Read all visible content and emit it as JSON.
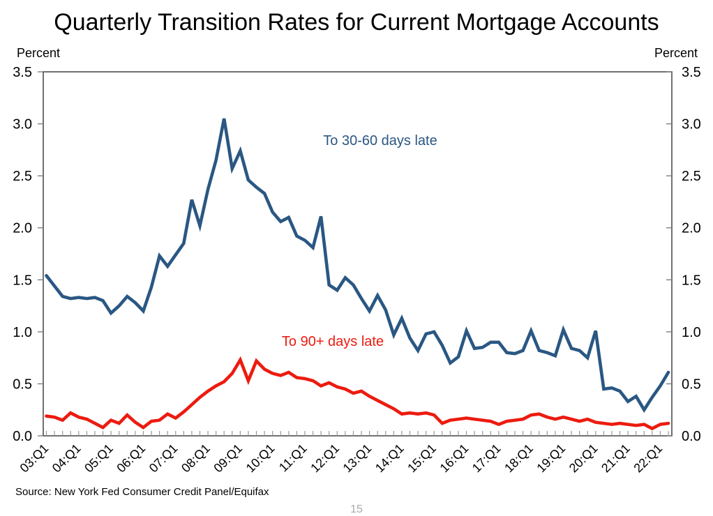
{
  "title": "Quarterly Transition Rates for Current Mortgage Accounts",
  "axis_units": {
    "left": "Percent",
    "right": "Percent"
  },
  "source": "Source: New York Fed Consumer Credit Panel/Equifax",
  "page_number": "15",
  "chart_data": {
    "type": "line",
    "title": "Quarterly Transition Rates for Current Mortgage Accounts",
    "ylabel": "Percent",
    "ylim": [
      0.0,
      3.5
    ],
    "yticks": [
      0.0,
      0.5,
      1.0,
      1.5,
      2.0,
      2.5,
      3.0,
      3.5
    ],
    "ytick_labels": [
      "0.0",
      "0.5",
      "1.0",
      "1.5",
      "2.0",
      "2.5",
      "3.0",
      "3.5"
    ],
    "x_frequency": "quarterly",
    "x_start": "03:Q1",
    "x_end": "22:Q2",
    "x_tick_labels": [
      "03:Q1",
      "04:Q1",
      "05:Q1",
      "06:Q1",
      "07:Q1",
      "08:Q1",
      "09:Q1",
      "10:Q1",
      "11:Q1",
      "12:Q1",
      "13:Q1",
      "14:Q1",
      "15:Q1",
      "16:Q1",
      "17:Q1",
      "18:Q1",
      "19:Q1",
      "20:Q1",
      "21:Q1",
      "22:Q1"
    ],
    "x_label_every_n_quarters": 4,
    "grid": false,
    "legend_position": "inline-annotations",
    "series": [
      {
        "name": "To 30-60 days late",
        "color": "#2A5783",
        "values": [
          1.54,
          1.44,
          1.34,
          1.32,
          1.33,
          1.32,
          1.33,
          1.3,
          1.18,
          1.25,
          1.34,
          1.28,
          1.2,
          1.43,
          1.73,
          1.63,
          1.74,
          1.85,
          2.27,
          2.02,
          2.37,
          2.65,
          3.05,
          2.57,
          2.74,
          2.46,
          2.39,
          2.33,
          2.15,
          2.06,
          2.1,
          1.92,
          1.88,
          1.81,
          2.11,
          1.45,
          1.4,
          1.52,
          1.45,
          1.32,
          1.2,
          1.35,
          1.21,
          0.97,
          1.13,
          0.94,
          0.82,
          0.98,
          1.0,
          0.87,
          0.7,
          0.76,
          1.01,
          0.84,
          0.85,
          0.9,
          0.9,
          0.8,
          0.79,
          0.82,
          1.01,
          0.82,
          0.8,
          0.77,
          1.02,
          0.84,
          0.82,
          0.75,
          1.01,
          0.45,
          0.46,
          0.43,
          0.33,
          0.38,
          0.25,
          0.37,
          0.48,
          0.61
        ]
      },
      {
        "name": "To 90+ days late",
        "color": "#EC1B0F",
        "values": [
          0.19,
          0.18,
          0.15,
          0.22,
          0.18,
          0.16,
          0.12,
          0.08,
          0.15,
          0.12,
          0.2,
          0.13,
          0.08,
          0.14,
          0.15,
          0.21,
          0.17,
          0.23,
          0.3,
          0.37,
          0.43,
          0.48,
          0.52,
          0.6,
          0.73,
          0.53,
          0.72,
          0.64,
          0.6,
          0.58,
          0.61,
          0.56,
          0.55,
          0.53,
          0.48,
          0.51,
          0.47,
          0.45,
          0.41,
          0.43,
          0.38,
          0.34,
          0.3,
          0.26,
          0.21,
          0.22,
          0.21,
          0.22,
          0.2,
          0.12,
          0.15,
          0.16,
          0.17,
          0.16,
          0.15,
          0.14,
          0.11,
          0.14,
          0.15,
          0.16,
          0.2,
          0.21,
          0.18,
          0.16,
          0.18,
          0.16,
          0.14,
          0.16,
          0.13,
          0.12,
          0.11,
          0.12,
          0.11,
          0.1,
          0.11,
          0.07,
          0.11,
          0.12
        ]
      }
    ]
  }
}
